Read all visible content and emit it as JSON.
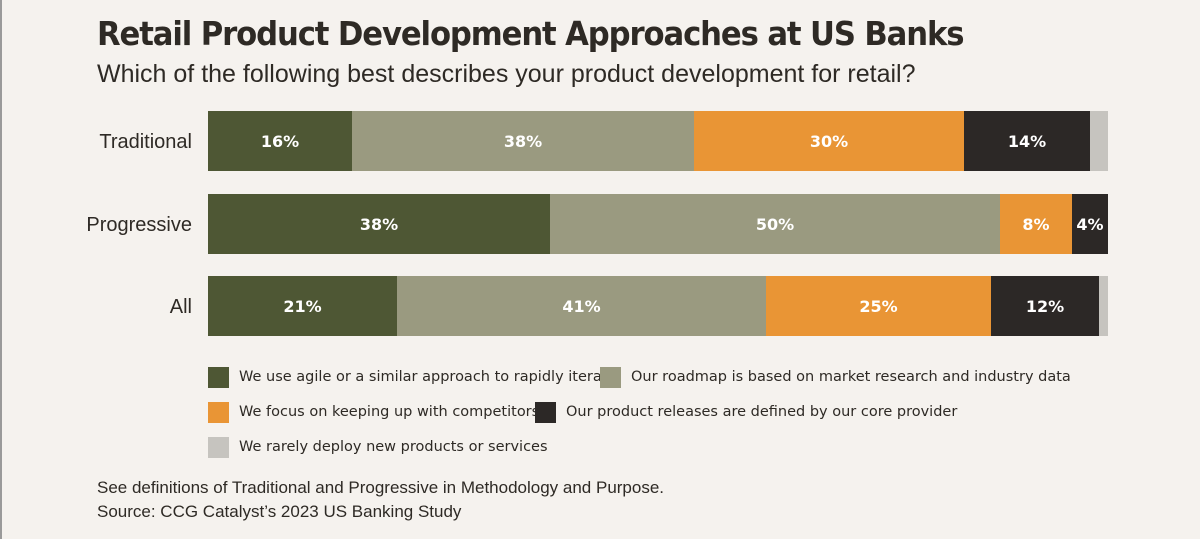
{
  "title": "Retail Product Development Approaches at US Banks",
  "subtitle": "Which of the following best describes your product development for retail?",
  "chart_data": {
    "type": "bar",
    "orientation": "horizontal",
    "stacked": true,
    "categories": [
      "Traditional",
      "Progressive",
      "All"
    ],
    "series": [
      {
        "name": "We use agile or a similar approach to rapidly iterate",
        "color": "#4e5734",
        "values": [
          16,
          38,
          21
        ],
        "labels": [
          "16%",
          "38%",
          "21%"
        ]
      },
      {
        "name": "Our roadmap is based on market research and industry data",
        "color": "#9a9a80",
        "values": [
          38,
          50,
          41
        ],
        "labels": [
          "38%",
          "50%",
          "41%"
        ]
      },
      {
        "name": "We focus on keeping up with competitors",
        "color": "#e99535",
        "values": [
          30,
          8,
          25
        ],
        "labels": [
          "30%",
          "8%",
          "25%"
        ]
      },
      {
        "name": "Our product releases are defined by our core provider",
        "color": "#2c2826",
        "values": [
          14,
          4,
          12
        ],
        "labels": [
          "14%",
          "4%",
          "12%"
        ]
      },
      {
        "name": "We rarely deploy new products or services",
        "color": "#c6c4bf",
        "values": [
          2,
          0,
          1
        ],
        "labels": [
          "",
          "",
          ""
        ]
      }
    ],
    "xlim": [
      0,
      100
    ],
    "legend": "bottom",
    "grid": false
  },
  "legend_items": [
    {
      "label": "We use agile or a similar approach to rapidly iterate",
      "color": "#4e5734"
    },
    {
      "label": "Our roadmap is based on market research and industry data",
      "color": "#9a9a80"
    },
    {
      "label": "We focus on keeping up with competitors",
      "color": "#e99535"
    },
    {
      "label": "Our product releases are defined by our core provider",
      "color": "#2c2826"
    },
    {
      "label": "We rarely deploy new products or services",
      "color": "#c6c4bf"
    }
  ],
  "footnote": {
    "definitions": "See definitions of Traditional and Progressive in Methodology and Purpose.",
    "source": "Source: CCG Catalyst’s 2023 US Banking Study"
  }
}
